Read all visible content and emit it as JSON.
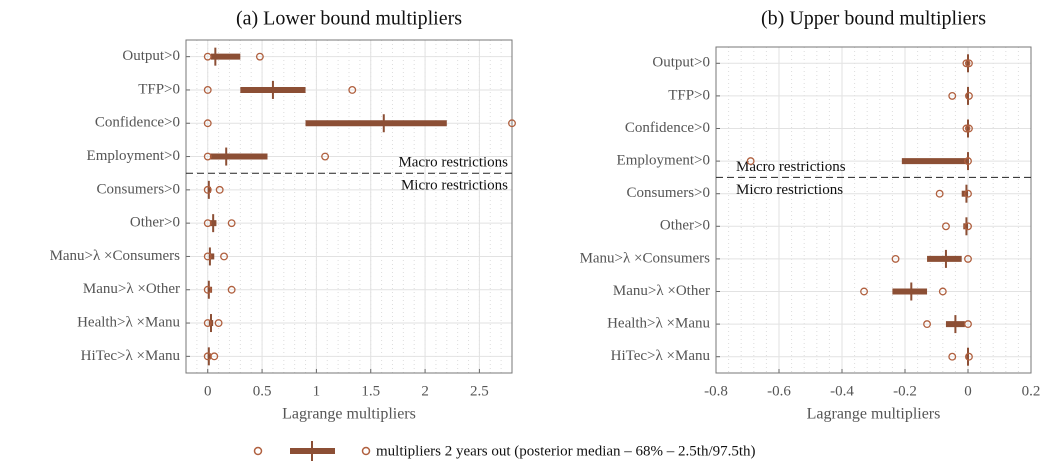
{
  "chart_data": [
    {
      "type": "interval",
      "title": "(a) Lower bound multipliers",
      "xlabel": "Lagrange multipliers",
      "categories": [
        "Output>0",
        "TFP>0",
        "Confidence>0",
        "Employment>0",
        "Consumers>0",
        "Other>0",
        "Manu>λ ×Consumers",
        "Manu>λ ×Other",
        "Health>λ ×Manu",
        "HiTec>λ ×Manu"
      ],
      "low95": [
        0,
        0,
        0,
        0,
        0,
        0,
        0,
        0,
        0,
        0
      ],
      "low68": [
        0.03,
        0.3,
        0.9,
        0.02,
        0,
        0.02,
        0.01,
        0,
        0.01,
        0
      ],
      "median": [
        0.07,
        0.6,
        1.62,
        0.17,
        0.01,
        0.05,
        0.02,
        0.01,
        0.03,
        0.01
      ],
      "high68": [
        0.3,
        0.9,
        2.2,
        0.55,
        0.03,
        0.08,
        0.06,
        0.04,
        0.05,
        0.03
      ],
      "high95": [
        0.48,
        1.33,
        2.8,
        1.08,
        0.11,
        0.22,
        0.15,
        0.22,
        0.1,
        0.06
      ],
      "xlim": [
        -0.2,
        2.8
      ],
      "xticks": [
        0,
        0.5,
        1,
        1.5,
        2,
        2.5
      ],
      "grid": true,
      "minor_grid": true,
      "annotations": [
        "Macro restrictions",
        "Micro restrictions"
      ],
      "annotation_side": "right",
      "color": "#8c4f35",
      "marker_color": "#b0603f"
    },
    {
      "type": "interval",
      "title": "(b) Upper bound multipliers",
      "xlabel": "Lagrange multipliers",
      "categories": [
        "Output>0",
        "TFP>0",
        "Confidence>0",
        "Employment>0",
        "Consumers>0",
        "Other>0",
        "Manu>λ ×Consumers",
        "Manu>λ ×Other",
        "Health>λ ×Manu",
        "HiTec>λ ×Manu"
      ],
      "low95": [
        -0.005,
        -0.05,
        -0.005,
        -0.69,
        -0.09,
        -0.07,
        -0.23,
        -0.33,
        -0.13,
        -0.05
      ],
      "low68": [
        -0.005,
        -0.005,
        -0.005,
        -0.21,
        -0.02,
        -0.015,
        -0.13,
        -0.24,
        -0.07,
        -0.005
      ],
      "median": [
        0,
        0,
        0,
        0,
        -0.005,
        -0.005,
        -0.07,
        -0.18,
        -0.04,
        0
      ],
      "high68": [
        0.003,
        0.003,
        0.003,
        0,
        0,
        0,
        -0.02,
        -0.13,
        -0.01,
        0.003
      ],
      "high95": [
        0.003,
        0.003,
        0.003,
        0,
        0,
        0,
        0,
        -0.08,
        0,
        0.003
      ],
      "xlim": [
        -0.8,
        0.2
      ],
      "xticks": [
        -0.8,
        -0.6,
        -0.4,
        -0.2,
        0,
        0.2
      ],
      "grid": true,
      "minor_grid": true,
      "annotations": [
        "Macro restrictions",
        "Micro restrictions"
      ],
      "annotation_side": "left",
      "color": "#8c4f35",
      "marker_color": "#b0603f"
    }
  ],
  "legend_label": "multipliers 2 years out (posterior median – 68% – 2.5th/97.5th)"
}
